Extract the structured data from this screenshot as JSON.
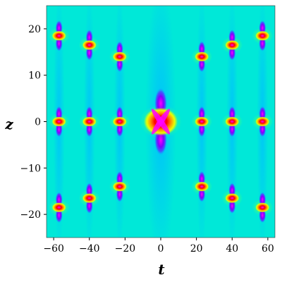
{
  "chart_data": {
    "type": "heatmap",
    "xlabel": "t",
    "ylabel": "z",
    "xlim": [
      -64,
      64
    ],
    "ylim": [
      -25,
      25
    ],
    "xticks": [
      -60,
      -40,
      -20,
      0,
      20,
      40,
      60
    ],
    "yticks": [
      -20,
      -10,
      0,
      10,
      20
    ],
    "xtick_labels": [
      "−60",
      "−40",
      "−20",
      "0",
      "20",
      "40",
      "60"
    ],
    "ytick_labels": [
      "−20",
      "−10",
      "0",
      "10",
      "20"
    ],
    "colormap": [
      "#1a00c8",
      "#3f5cff",
      "#00bfff",
      "#00e8d8",
      "#40ff80",
      "#e8ff00",
      "#ff9000",
      "#ff0000",
      "#ff00ff"
    ],
    "background_color": "#00e8d8",
    "central_peak": {
      "t": 0,
      "z": 0
    },
    "periodic_peaks": [
      {
        "t": -57,
        "z": 18.5
      },
      {
        "t": -40,
        "z": 16.5
      },
      {
        "t": -23,
        "z": 14
      },
      {
        "t": 23,
        "z": 14
      },
      {
        "t": 40,
        "z": 16.5
      },
      {
        "t": 57,
        "z": 18.5
      },
      {
        "t": -57,
        "z": 0
      },
      {
        "t": -40,
        "z": 0
      },
      {
        "t": -23,
        "z": 0
      },
      {
        "t": 23,
        "z": 0
      },
      {
        "t": 40,
        "z": 0
      },
      {
        "t": 57,
        "z": 0
      },
      {
        "t": -57,
        "z": -18.5
      },
      {
        "t": -40,
        "z": -16.5
      },
      {
        "t": -23,
        "z": -14
      },
      {
        "t": 23,
        "z": -14
      },
      {
        "t": 40,
        "z": -16.5
      },
      {
        "t": 57,
        "z": -18.5
      }
    ]
  }
}
